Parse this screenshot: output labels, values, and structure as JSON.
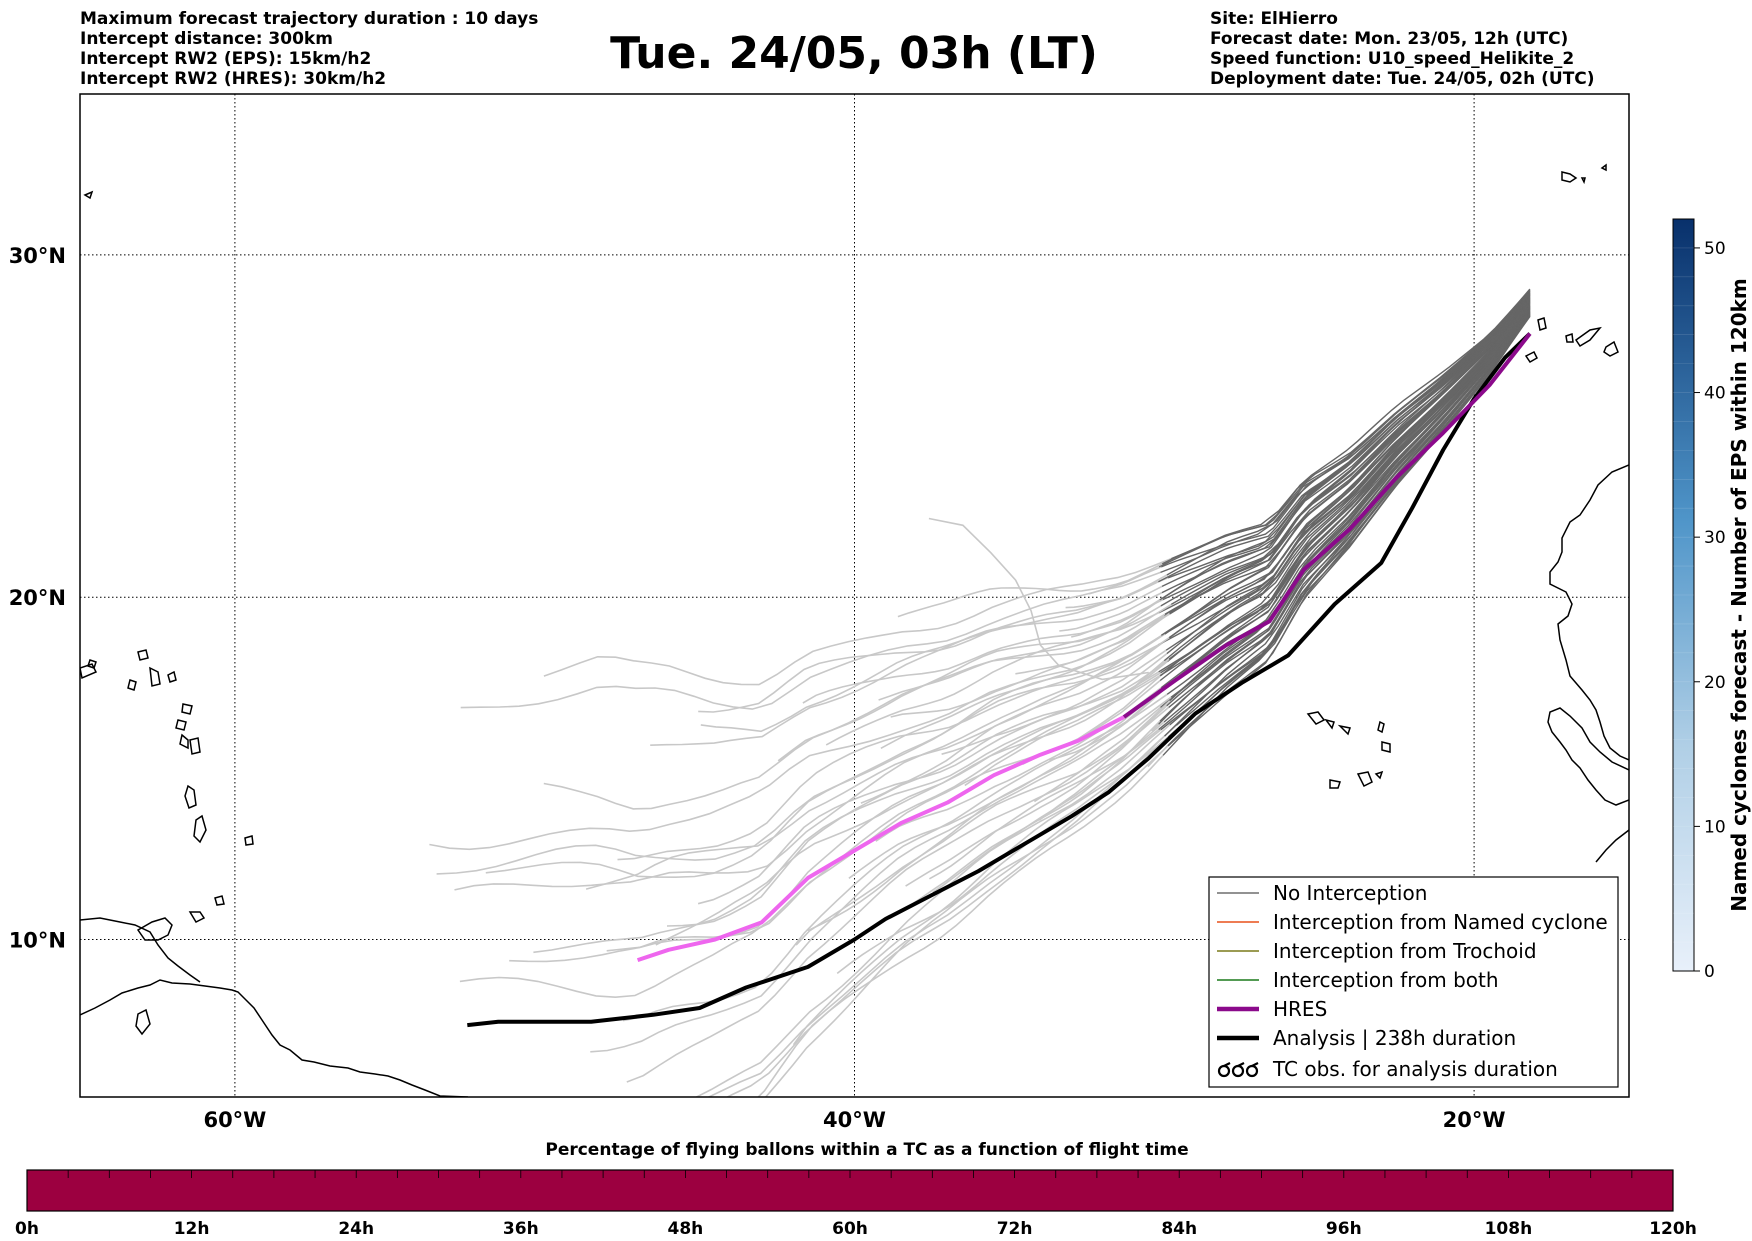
{
  "header": {
    "title": "Tue. 24/05, 03h (LT)",
    "left_lines": [
      "Maximum forecast trajectory duration : 10 days",
      "Intercept distance: 300km",
      "Intercept RW2 (EPS):  15km/h2",
      "Intercept RW2 (HRES): 30km/h2"
    ],
    "right_lines": [
      "Site: ElHierro",
      "Forecast date: Mon. 23/05, 12h (UTC)",
      "Speed function: U10_speed_Helikite_2",
      "Deployment date: Tue. 24/05, 02h (UTC)"
    ]
  },
  "map": {
    "lon_range": [
      -65,
      -15
    ],
    "lat_range": [
      5.4,
      34.7
    ],
    "lon_ticks": [
      {
        "value": -60,
        "label": "60°W"
      },
      {
        "value": -40,
        "label": "40°W"
      },
      {
        "value": -20,
        "label": "20°W"
      }
    ],
    "lat_ticks": [
      {
        "value": 30,
        "label": "30°N"
      },
      {
        "value": 20,
        "label": "20°N"
      },
      {
        "value": 10,
        "label": "10°N"
      }
    ],
    "grid": "dotted"
  },
  "chart_data": {
    "type": "line",
    "x_axis": "longitude",
    "y_axis": "latitude",
    "origin": {
      "lon": -18.2,
      "lat": 27.7
    },
    "series": [
      {
        "name": "HRES",
        "color": "#8b0a8b",
        "end_color": "#ee66ee",
        "points": [
          [
            -18.2,
            27.7
          ],
          [
            -19.5,
            26.2
          ],
          [
            -21.0,
            24.8
          ],
          [
            -22.5,
            23.5
          ],
          [
            -24.0,
            22.0
          ],
          [
            -25.5,
            20.8
          ],
          [
            -26.6,
            19.3
          ],
          [
            -28.0,
            18.6
          ],
          [
            -29.6,
            17.6
          ],
          [
            -31.3,
            16.5
          ],
          [
            -32.8,
            15.8
          ],
          [
            -34.0,
            15.4
          ],
          [
            -35.5,
            14.8
          ],
          [
            -37.0,
            14.0
          ],
          [
            -38.5,
            13.4
          ],
          [
            -40.0,
            12.6
          ],
          [
            -41.5,
            11.8
          ],
          [
            -43.0,
            10.5
          ],
          [
            -44.5,
            10.0
          ],
          [
            -46.0,
            9.7
          ],
          [
            -47.0,
            9.4
          ]
        ]
      },
      {
        "name": "Analysis | 238h duration",
        "color": "#000000",
        "points": [
          [
            -18.2,
            27.7
          ],
          [
            -19.0,
            27.0
          ],
          [
            -20.0,
            25.8
          ],
          [
            -21.0,
            24.3
          ],
          [
            -22.0,
            22.6
          ],
          [
            -23.0,
            21.0
          ],
          [
            -24.5,
            19.8
          ],
          [
            -26.0,
            18.3
          ],
          [
            -27.5,
            17.5
          ],
          [
            -29.0,
            16.6
          ],
          [
            -30.5,
            15.3
          ],
          [
            -31.8,
            14.3
          ],
          [
            -33.0,
            13.6
          ],
          [
            -34.5,
            12.8
          ],
          [
            -36.0,
            12.0
          ],
          [
            -37.5,
            11.3
          ],
          [
            -39.0,
            10.6
          ],
          [
            -40.0,
            10.0
          ],
          [
            -41.5,
            9.2
          ],
          [
            -43.5,
            8.6
          ],
          [
            -45.0,
            8.0
          ],
          [
            -46.5,
            7.8
          ],
          [
            -48.5,
            7.6
          ],
          [
            -50.0,
            7.6
          ],
          [
            -51.5,
            7.6
          ],
          [
            -52.5,
            7.5
          ]
        ]
      }
    ],
    "legend": {
      "placement": "bottom-right",
      "entries": [
        {
          "label": "No Interception",
          "color": "#6e6e6e",
          "kind": "thin"
        },
        {
          "label": "Interception from Named cyclone",
          "color": "#e8501a",
          "kind": "thin"
        },
        {
          "label": "Interception from Trochoid",
          "color": "#7a7a1a",
          "kind": "thin"
        },
        {
          "label": "Interception from both",
          "color": "#1a7a1a",
          "kind": "thin"
        },
        {
          "label": "HRES",
          "color": "#8b0a8b",
          "kind": "thick"
        },
        {
          "label": "Analysis | 238h duration",
          "color": "#000000",
          "kind": "thick"
        },
        {
          "label": "TC obs. for analysis duration",
          "color": "#000000",
          "kind": "marker"
        }
      ]
    },
    "ensemble_color_near": "#666666",
    "ensemble_color_far": "#c8c8c8"
  },
  "colorbar_right": {
    "label": "Named cyclones forecast - Number of EPS within 120km",
    "min": 0,
    "max": 52,
    "ticks": [
      0,
      10,
      20,
      30,
      40,
      50
    ],
    "color_low": "#e8f0fa",
    "color_high": "#08306b"
  },
  "colorbar_bottom": {
    "title": "Percentage of flying ballons within a TC as a function of flight time",
    "ticks": [
      "0h",
      "12h",
      "24h",
      "36h",
      "48h",
      "60h",
      "72h",
      "84h",
      "96h",
      "108h",
      "120h"
    ],
    "fill_color": "#9c0040"
  }
}
